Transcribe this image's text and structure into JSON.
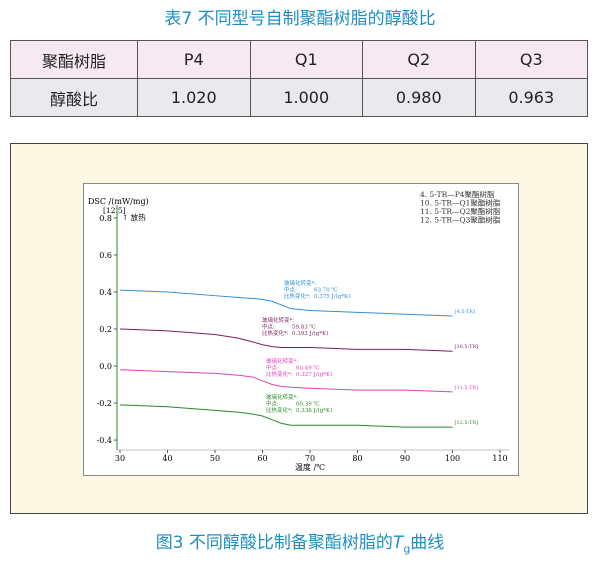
{
  "table_title": "表7 不同型号自制聚酯树脂的醇酸比",
  "table": {
    "header": [
      "聚酯树脂",
      "P4",
      "Q1",
      "Q2",
      "Q3"
    ],
    "rows": [
      [
        "醇酸比",
        "1.020",
        "1.000",
        "0.980",
        "0.963"
      ]
    ]
  },
  "chart_data": {
    "type": "line",
    "ylabel": "DSC /(mW/mg)",
    "ylabel_extra": "[12.5]",
    "ylabel_note": "↑ 放热",
    "xlabel": "温度 /℃",
    "x": [
      30,
      40,
      50,
      55,
      58,
      60,
      62,
      64,
      66,
      70,
      80,
      90,
      100
    ],
    "xlim": [
      28,
      112
    ],
    "xticks": [
      30,
      40,
      50,
      60,
      70,
      80,
      90,
      100,
      110
    ],
    "ylim": [
      -0.47,
      0.87
    ],
    "yticks": [
      0.8,
      0.6,
      0.4,
      0.2,
      0.0,
      -0.2,
      -0.4
    ],
    "series": [
      {
        "name": "4. 5-TR—P4聚酯树脂",
        "end_label": "[4.5-TR]",
        "color": "#2e8fd8",
        "values": [
          0.41,
          0.4,
          0.38,
          0.37,
          0.365,
          0.36,
          0.35,
          0.33,
          0.31,
          0.3,
          0.29,
          0.28,
          0.27
        ]
      },
      {
        "name": "10. 5-TR—Q1聚酯树脂",
        "end_label": "[10.5-TR]",
        "color": "#7a1f5c",
        "values": [
          0.2,
          0.19,
          0.17,
          0.15,
          0.13,
          0.115,
          0.105,
          0.1,
          0.1,
          0.1,
          0.09,
          0.09,
          0.08
        ]
      },
      {
        "name": "11. 5-TR—Q2聚酯树脂",
        "end_label": "[11.5-TR]",
        "color": "#e040c0",
        "values": [
          -0.02,
          -0.03,
          -0.04,
          -0.05,
          -0.06,
          -0.08,
          -0.1,
          -0.11,
          -0.115,
          -0.12,
          -0.13,
          -0.13,
          -0.14
        ]
      },
      {
        "name": "12. 5-TR—Q3聚酯树脂",
        "end_label": "[12.5-TR]",
        "color": "#2a8a2a",
        "values": [
          -0.21,
          -0.22,
          -0.24,
          -0.25,
          -0.26,
          -0.27,
          -0.29,
          -0.31,
          -0.32,
          -0.32,
          -0.32,
          -0.33,
          -0.33
        ]
      }
    ],
    "annotations": [
      {
        "title": "玻璃化转变*:",
        "mid_label": "中点:",
        "mid": "63.70 ℃",
        "cp_label": "比热变化*:",
        "cp": "0.375 J/(g*K)"
      },
      {
        "title": "玻璃化转变*:",
        "mid_label": "中点:",
        "mid": "59.83 ℃",
        "cp_label": "比热变化*:",
        "cp": "0.393 J/(g*K)"
      },
      {
        "title": "玻璃化转变*:",
        "mid_label": "中点:",
        "mid": "60.49 ℃",
        "cp_label": "比热变化*:",
        "cp": "0.327 J/(g*K)"
      },
      {
        "title": "玻璃化转变*:",
        "mid_label": "中点:",
        "mid": "60.39 ℃",
        "cp_label": "比热变化*:",
        "cp": "0.336 J/(g*K)"
      }
    ]
  },
  "caption": {
    "prefix": "图3 不同醇酸比制备聚酯树脂的",
    "symbol": "T",
    "subscript": "g",
    "suffix": "曲线"
  }
}
